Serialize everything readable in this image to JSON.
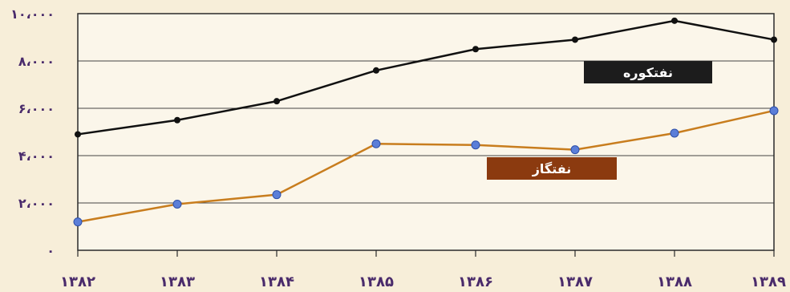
{
  "chart_data": {
    "type": "line",
    "categories": [
      "۱۳۸۲",
      "۱۳۸۳",
      "۱۳۸۴",
      "۱۳۸۵",
      "۱۳۸۶",
      "۱۳۸۷",
      "۱۳۸۸",
      "۱۳۸۹"
    ],
    "y_tick_labels": [
      "۰",
      "۲،۰۰۰",
      "۴،۰۰۰",
      "۶،۰۰۰",
      "۸،۰۰۰",
      "۱۰،۰۰۰"
    ],
    "y_ticks": [
      0,
      2000,
      4000,
      6000,
      8000,
      10000
    ],
    "ylim": [
      0,
      10000
    ],
    "grid": true,
    "series": [
      {
        "name": "نفتکوره",
        "color": "#111111",
        "marker_color": "#111111",
        "label_bg": "#1c1c1c",
        "values": [
          4900,
          5500,
          6300,
          7600,
          8500,
          8900,
          9700,
          8900
        ]
      },
      {
        "name": "نفتگاز",
        "color": "#c87d1e",
        "marker_color": "#5b7ed8",
        "label_bg": "#8b3a0f",
        "values": [
          1200,
          1950,
          2350,
          4500,
          4450,
          4250,
          4950,
          5900
        ]
      }
    ]
  }
}
